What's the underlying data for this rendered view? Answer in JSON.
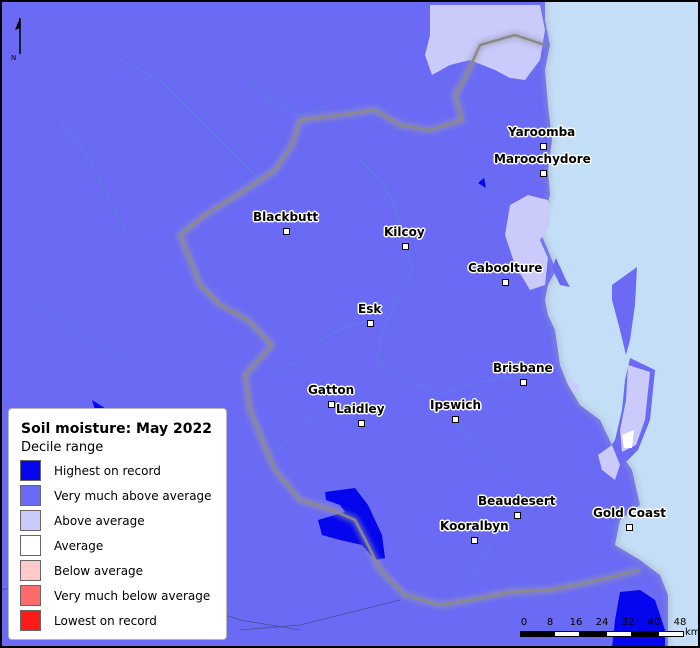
{
  "legend": {
    "title": "Soil moisture: May 2022",
    "subtitle": "Decile range",
    "items": [
      {
        "label": "Highest on record",
        "color": "#0505ee"
      },
      {
        "label": "Very much above average",
        "color": "#6a6af5"
      },
      {
        "label": "Above average",
        "color": "#cacafb"
      },
      {
        "label": "Average",
        "color": "#ffffff"
      },
      {
        "label": "Below average",
        "color": "#ffcaca"
      },
      {
        "label": "Very much below average",
        "color": "#ff6b6b"
      },
      {
        "label": "Lowest on record",
        "color": "#ff1a1a"
      }
    ]
  },
  "towns": [
    {
      "name": "Yaroomba"
    },
    {
      "name": "Maroochydore"
    },
    {
      "name": "Blackbutt"
    },
    {
      "name": "Kilcoy"
    },
    {
      "name": "Caboolture"
    },
    {
      "name": "Esk"
    },
    {
      "name": "Brisbane"
    },
    {
      "name": "Gatton"
    },
    {
      "name": "Laidley"
    },
    {
      "name": "Ipswich"
    },
    {
      "name": "Beaudesert"
    },
    {
      "name": "Gold Coast"
    },
    {
      "name": "Kooralbyn"
    }
  ],
  "north_arrow": {
    "label": "N"
  },
  "scale": {
    "ticks": [
      "0",
      "8",
      "16",
      "24",
      "32",
      "40",
      "48"
    ],
    "unit": "km"
  },
  "colors": {
    "ocean": "#c4def7",
    "boundary": "#8a8a8a",
    "rivers": "#5a8ed8"
  }
}
